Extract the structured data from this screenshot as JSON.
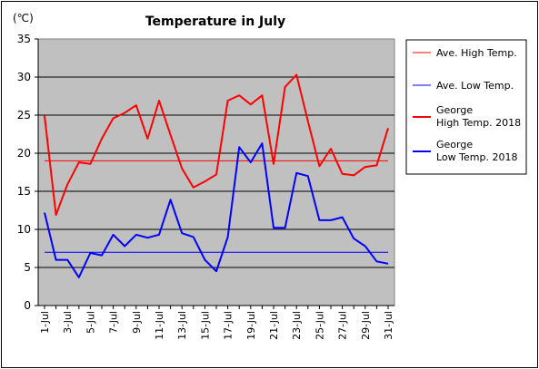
{
  "chart_data": {
    "type": "line",
    "title": "Temperature in July",
    "unit_label": "(℃)",
    "ylim": [
      0,
      35
    ],
    "y_ticks": [
      0,
      5,
      10,
      15,
      20,
      25,
      30,
      35
    ],
    "x": [
      "1-Jul",
      "2-Jul",
      "3-Jul",
      "4-Jul",
      "5-Jul",
      "6-Jul",
      "7-Jul",
      "8-Jul",
      "9-Jul",
      "10-Jul",
      "11-Jul",
      "12-Jul",
      "13-Jul",
      "14-Jul",
      "15-Jul",
      "16-Jul",
      "17-Jul",
      "18-Jul",
      "19-Jul",
      "20-Jul",
      "21-Jul",
      "22-Jul",
      "23-Jul",
      "24-Jul",
      "25-Jul",
      "26-Jul",
      "27-Jul",
      "28-Jul",
      "29-Jul",
      "30-Jul",
      "31-Jul"
    ],
    "x_tick_labels": [
      "1-Jul",
      "3-Jul",
      "5-Jul",
      "7-Jul",
      "9-Jul",
      "11-Jul",
      "13-Jul",
      "15-Jul",
      "17-Jul",
      "19-Jul",
      "21-Jul",
      "23-Jul",
      "25-Jul",
      "27-Jul",
      "29-Jul",
      "31-Jul"
    ],
    "grid": true,
    "legend_position": "right",
    "plot_background": "#c0c0c0",
    "series": [
      {
        "name": "Ave. High Temp.",
        "color": "#ff0000",
        "width": 1,
        "values": [
          19.0,
          19.0,
          19.0,
          19.0,
          19.0,
          19.0,
          19.0,
          19.0,
          19.0,
          19.0,
          19.0,
          19.0,
          19.0,
          19.0,
          19.0,
          19.0,
          19.0,
          19.0,
          19.0,
          19.0,
          19.0,
          19.0,
          19.0,
          19.0,
          19.0,
          19.0,
          19.0,
          19.0,
          19.0,
          19.0,
          19.0
        ]
      },
      {
        "name": "Ave. Low Temp.",
        "color": "#0000ff",
        "width": 1,
        "values": [
          7.0,
          7.0,
          7.0,
          7.0,
          7.0,
          7.0,
          7.0,
          7.0,
          7.0,
          7.0,
          7.0,
          7.0,
          7.0,
          7.0,
          7.0,
          7.0,
          7.0,
          7.0,
          7.0,
          7.0,
          7.0,
          7.0,
          7.0,
          7.0,
          7.0,
          7.0,
          7.0,
          7.0,
          7.0,
          7.0,
          7.0
        ]
      },
      {
        "name": "George High Temp. 2018",
        "legend_lines": [
          "George",
          "High Temp. 2018"
        ],
        "color": "#ff0000",
        "width": 2,
        "values": [
          24.9,
          11.9,
          15.9,
          18.8,
          18.6,
          21.9,
          24.6,
          25.3,
          26.3,
          21.9,
          26.9,
          22.4,
          18.0,
          15.5,
          16.3,
          17.2,
          26.9,
          27.6,
          26.4,
          27.6,
          18.6,
          28.7,
          30.3,
          24.2,
          18.3,
          20.6,
          17.3,
          17.1,
          18.2,
          18.4,
          23.3
        ]
      },
      {
        "name": "George Low Temp. 2018",
        "legend_lines": [
          "George",
          "Low Temp. 2018"
        ],
        "color": "#0000ff",
        "width": 2,
        "values": [
          12.2,
          6.0,
          6.0,
          3.7,
          6.9,
          6.6,
          9.3,
          7.8,
          9.3,
          8.9,
          9.3,
          13.9,
          9.5,
          9.0,
          6.0,
          4.5,
          9.0,
          20.8,
          18.8,
          21.3,
          10.2,
          10.2,
          17.4,
          17.0,
          11.2,
          11.2,
          11.6,
          8.8,
          7.8,
          5.8,
          5.5
        ]
      }
    ]
  }
}
